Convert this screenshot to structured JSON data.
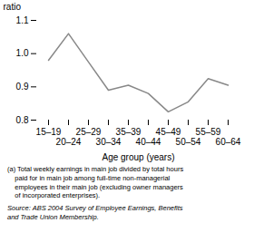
{
  "chart_data": {
    "type": "line",
    "categories": [
      "15–19",
      "20–24",
      "25–29",
      "30–34",
      "35–39",
      "40–44",
      "45–49",
      "50–54",
      "55–59",
      "60–64"
    ],
    "values": [
      0.98,
      1.06,
      0.975,
      0.89,
      0.905,
      0.88,
      0.825,
      0.855,
      0.925,
      0.905
    ],
    "color": "#888888",
    "xlabel": "Age group (years)",
    "ylabel": "ratio",
    "ylim": [
      0.8,
      1.1
    ],
    "yticks": [
      0.8,
      0.9,
      {
        "value": 1.0,
        "label": "1.0"
      },
      1.1
    ],
    "grid": false,
    "footnote": [
      "(a) Total weekly earnings in main job divided by total hours",
      "    paid for in main job among full-time non-managerial",
      "    employees in their main job (excluding owner managers",
      "    of incorporated enterprises)."
    ],
    "source": [
      "Source: ABS 2004 Survey of Employee Earnings, Benefits",
      "and Trade Union Membership."
    ]
  }
}
